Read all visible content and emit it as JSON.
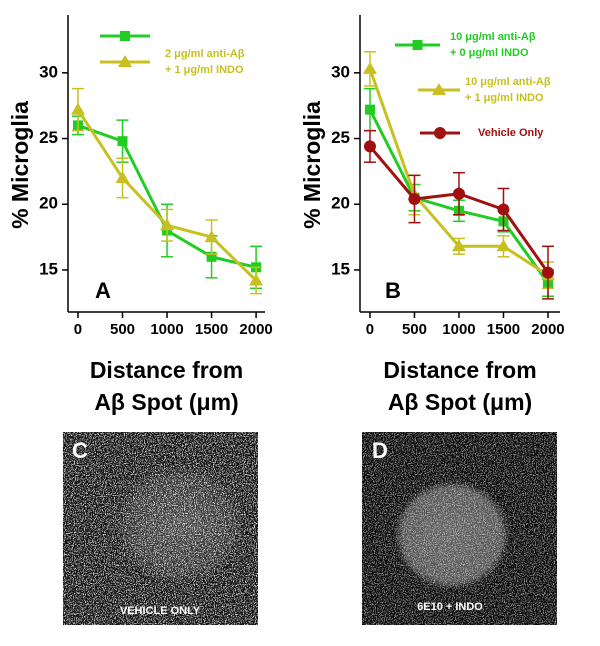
{
  "chart_data": [
    {
      "type": "line",
      "panel_label": "A",
      "ylabel": "% Microglia",
      "xlabel": [
        "Distance from",
        "Aβ Spot (μm)"
      ],
      "x": [
        0,
        500,
        1000,
        1500,
        2000
      ],
      "xlim": [
        -112,
        2100
      ],
      "xticks": [
        0,
        500,
        1000,
        1500,
        2000
      ],
      "ylim": [
        11.8,
        34.4
      ],
      "yticks": [
        15,
        20,
        25,
        30
      ],
      "series": [
        {
          "name": null,
          "color": "#22cc22",
          "marker": "square",
          "values": [
            26,
            24.8,
            18,
            16,
            15.2
          ],
          "errors": [
            0.7,
            1.6,
            2,
            1.6,
            1.6
          ]
        },
        {
          "name": [
            "2 μg/ml anti-Aβ",
            "+ 1 μg/ml INDO"
          ],
          "color": "#c8c020",
          "marker": "triangle",
          "values": [
            27.2,
            22,
            18.4,
            17.5,
            14.2
          ],
          "errors": [
            1.6,
            1.5,
            1.2,
            1.3,
            1.0
          ]
        }
      ]
    },
    {
      "type": "line",
      "panel_label": "B",
      "ylabel": "% Microglia",
      "xlabel": [
        "Distance from",
        "Aβ Spot (μm)"
      ],
      "x": [
        0,
        500,
        1000,
        1500,
        2000
      ],
      "xlim": [
        -112,
        2135
      ],
      "xticks": [
        0,
        500,
        1000,
        1500,
        2000
      ],
      "ylim": [
        11.8,
        34.4
      ],
      "yticks": [
        15,
        20,
        25,
        30
      ],
      "series": [
        {
          "name": [
            "10 μg/ml anti-Aβ",
            "+ 0 μg/ml INDO"
          ],
          "color": "#22cc22",
          "marker": "square",
          "values": [
            27.2,
            20.5,
            19.5,
            18.7,
            14.0
          ],
          "errors": [
            1.6,
            1.0,
            0.8,
            0.8,
            1.0
          ]
        },
        {
          "name": [
            "10 μg/ml anti-Aβ",
            "+ 1 μg/ml INDO"
          ],
          "color": "#c8c020",
          "marker": "triangle",
          "values": [
            30.3,
            20.7,
            16.8,
            16.8,
            14.6
          ],
          "errors": [
            1.3,
            1.5,
            0.6,
            0.8,
            1.0
          ]
        },
        {
          "name": [
            "Vehicle Only"
          ],
          "color": "#a01010",
          "marker": "circle",
          "values": [
            24.4,
            20.4,
            20.8,
            19.6,
            14.8
          ],
          "errors": [
            1.2,
            1.8,
            1.6,
            1.6,
            2.0
          ]
        }
      ]
    }
  ],
  "images": [
    {
      "label": "C",
      "caption": "VEHICLE ONLY"
    },
    {
      "label": "D",
      "caption": "6E10 + INDO"
    }
  ]
}
